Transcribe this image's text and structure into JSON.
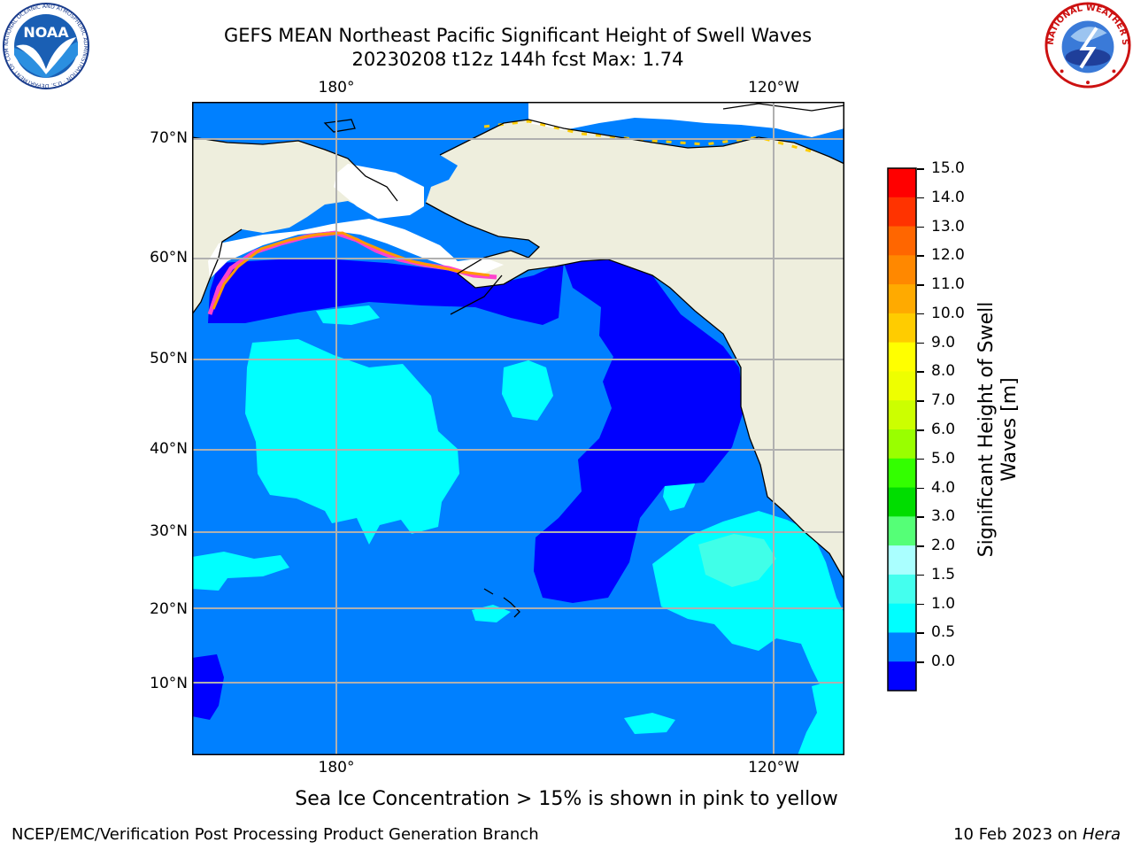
{
  "header": {
    "title_line1": "GEFS MEAN Northeast Pacific Significant Height of Swell Waves",
    "title_line2": "20230208 t12z 144h fcst   Max: 1.74"
  },
  "map": {
    "lon_labels": [
      "180°",
      "120°W"
    ],
    "lat_labels": [
      "70°N",
      "60°N",
      "50°N",
      "40°N",
      "30°N",
      "20°N",
      "10°N"
    ],
    "colors": {
      "land": "#eeeedd",
      "ice": "#ffffff",
      "ocean_0_0p5": "#0000ff",
      "ocean_0p5_1": "#0080ff",
      "ocean_1_1p5": "#00ffff",
      "ocean_1p5_2": "#40ffe8",
      "grid": "#b0b0b0"
    }
  },
  "logos": {
    "noaa": "NOAA",
    "noaa_ring": "NATIONAL OCEANIC AND ATMOSPHERIC ADMINISTRATION · U.S. DEPARTMENT OF COMMERCE",
    "nws_ring": "NATIONAL WEATHER SERVICE"
  },
  "colorbar": {
    "label_line1": "Significant Height of Swell",
    "label_line2": "Waves [m]",
    "ticks": [
      "15.0",
      "14.0",
      "13.0",
      "12.0",
      "11.0",
      "10.0",
      "9.0",
      "8.0",
      "7.0",
      "6.0",
      "5.0",
      "4.0",
      "3.0",
      "2.0",
      "1.5",
      "1.0",
      "0.5",
      "0.0"
    ],
    "colors_top_to_bottom": [
      "#ff0000",
      "#ff3300",
      "#ff6600",
      "#ff8800",
      "#ffaa00",
      "#ffcc00",
      "#ffff00",
      "#eeff00",
      "#ccff00",
      "#99ff00",
      "#33ff00",
      "#00dd00",
      "#55ff77",
      "#aaffff",
      "#44ffee",
      "#00ffff",
      "#0080ff",
      "#0000ff"
    ]
  },
  "note": "Sea Ice Concentration > 15% is shown in pink to yellow",
  "footer": {
    "left": "NCEP/EMC/Verification Post Processing Product Generation Branch",
    "right_date": "10 Feb 2023 on ",
    "right_host": "Hera"
  }
}
